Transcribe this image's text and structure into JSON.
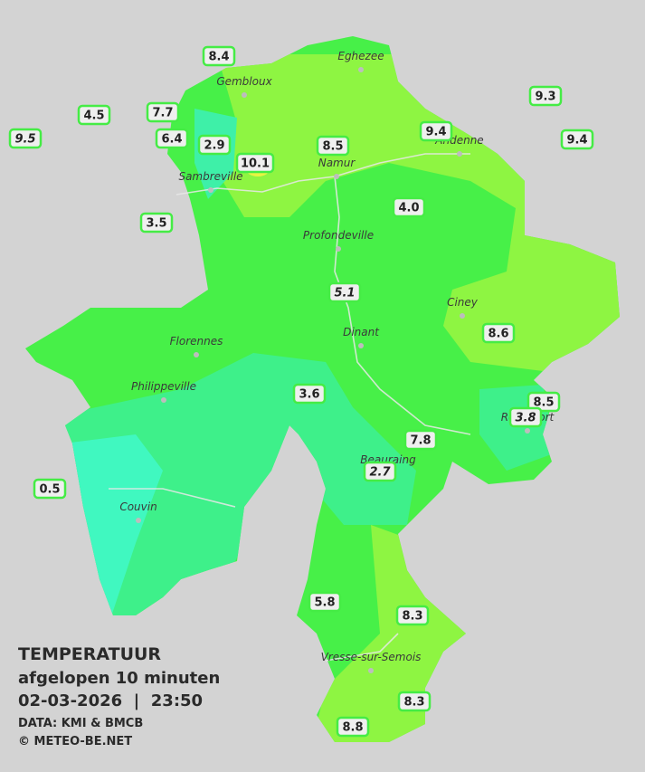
{
  "stations": [
    "8.4",
    "4.5",
    "7.7",
    "9.5",
    "6.4",
    "2.9",
    "10.1",
    "8.5",
    "9.4",
    "9.3",
    "9.4",
    "3.5",
    "4.0",
    "5.1",
    "8.6",
    "3.6",
    "8.5",
    "3.8",
    "7.8",
    "2.7",
    "0.5",
    "5.8",
    "8.3",
    "8.3",
    "8.8"
  ],
  "cities": [
    "Eghezee",
    "Gembloux",
    "Andenne",
    "Namur",
    "Sambreville",
    "Profondeville",
    "Ciney",
    "Dinant",
    "Florennes",
    "Philippeville",
    "Beauraing",
    "Rochefort",
    "Couvin",
    "Vresse-sur-Semois"
  ],
  "legend": {
    "title": "TEMPERATUUR",
    "subtitle": "afgelopen 10 minuten",
    "timestamp": "02-03-2026  |  23:50",
    "source": "DATA: KMI & BMCB",
    "copyright": "© METEO-BE.NET"
  }
}
